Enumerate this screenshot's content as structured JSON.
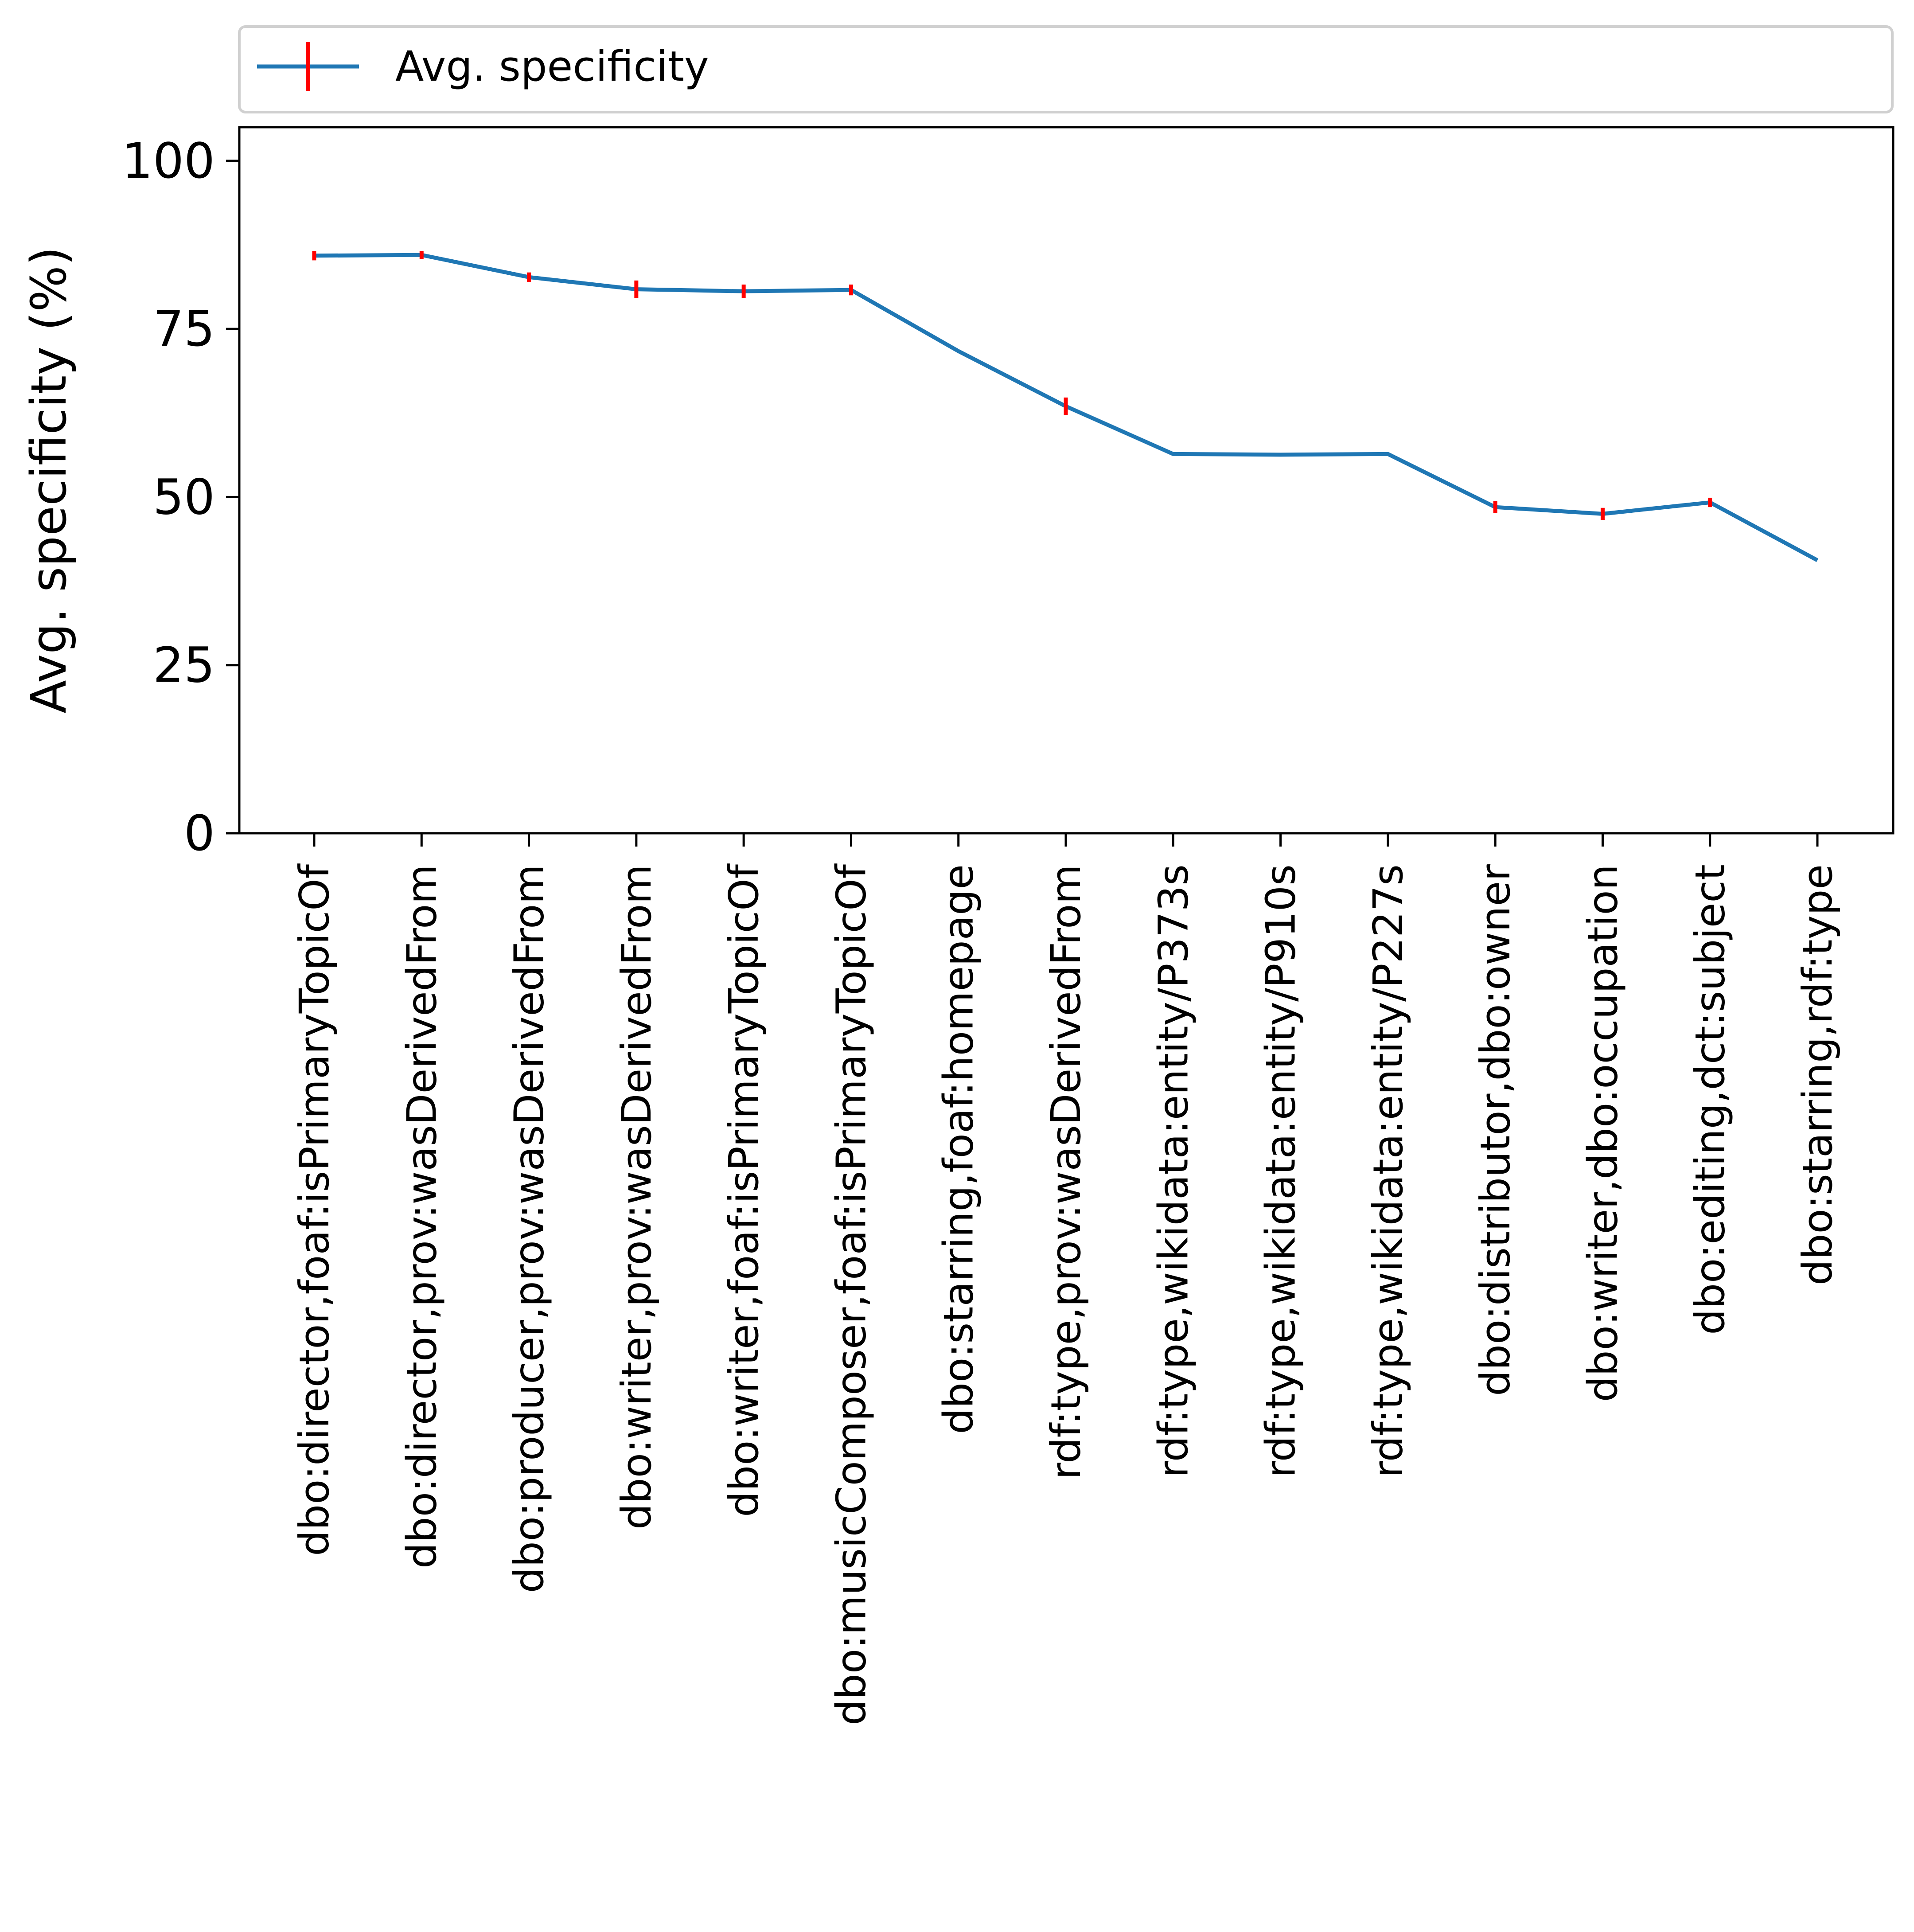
{
  "chart_data": {
    "type": "line",
    "title": "",
    "xlabel": "",
    "ylabel": "Avg. specificity (%)",
    "ylim": [
      0,
      105
    ],
    "yticks": [
      0,
      25,
      50,
      75,
      100
    ],
    "grid": false,
    "legend": {
      "placement": "top",
      "entries": [
        "Avg. specificity"
      ]
    },
    "categories": [
      "dbo:director,foaf:isPrimaryTopicOf",
      "dbo:director,prov:wasDerivedFrom",
      "dbo:producer,prov:wasDerivedFrom",
      "dbo:writer,prov:wasDerivedFrom",
      "dbo:writer,foaf:isPrimaryTopicOf",
      "dbo:musicComposer,foaf:isPrimaryTopicOf",
      "dbo:starring,foaf:homepage",
      "rdf:type,prov:wasDerivedFrom",
      "rdf:type,wikidata:entity/P373s",
      "rdf:type,wikidata:entity/P910s",
      "rdf:type,wikidata:entity/P227s",
      "dbo:distributor,dbo:owner",
      "dbo:writer,dbo:occupation",
      "dbo:editing,dct:subject",
      "dbo:starring,rdf:type"
    ],
    "series": [
      {
        "name": "Avg. specificity",
        "color": "#1f77b4",
        "error_color": "#ff0000",
        "values": [
          85.9,
          86.0,
          82.7,
          80.9,
          80.6,
          80.8,
          71.7,
          63.5,
          56.4,
          56.3,
          56.4,
          48.5,
          47.5,
          49.2,
          40.6
        ],
        "errors": [
          0.7,
          0.6,
          0.7,
          1.3,
          1.0,
          0.8,
          0.0,
          1.3,
          0.0,
          0.0,
          0.0,
          0.9,
          0.9,
          0.7,
          0.0
        ]
      }
    ]
  }
}
